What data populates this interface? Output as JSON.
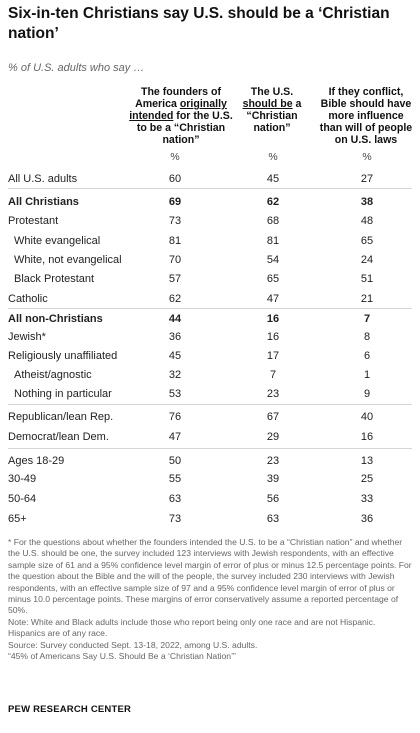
{
  "chart_data": {
    "type": "table",
    "title": "Six-in-ten Christians say U.S. should be a ‘Christian nation’",
    "subtitle": "% of U.S. adults who say …",
    "columns": [
      {
        "pre": "The founders of America ",
        "emph": "originally intended",
        "post": " for the U.S. to be a “Christian nation”"
      },
      {
        "pre": "The U.S. ",
        "emph": "should be",
        "post": " a “Christian nation”"
      },
      {
        "pre": "If they conflict, Bible should have more influence than will of people on U.S. laws",
        "emph": "",
        "post": ""
      }
    ],
    "unit": "%",
    "rows": [
      {
        "label": "All U.S. adults",
        "values": [
          "60",
          "45",
          "27"
        ],
        "bold": false,
        "indent": false
      },
      {
        "label": "All Christians",
        "values": [
          "69",
          "62",
          "38"
        ],
        "bold": true,
        "indent": false
      },
      {
        "label": "Protestant",
        "values": [
          "73",
          "68",
          "48"
        ],
        "bold": false,
        "indent": false
      },
      {
        "label": "White evangelical",
        "values": [
          "81",
          "81",
          "65"
        ],
        "bold": false,
        "indent": true
      },
      {
        "label": "White, not evangelical",
        "values": [
          "70",
          "54",
          "24"
        ],
        "bold": false,
        "indent": true
      },
      {
        "label": "Black Protestant",
        "values": [
          "57",
          "65",
          "51"
        ],
        "bold": false,
        "indent": true
      },
      {
        "label": "Catholic",
        "values": [
          "62",
          "47",
          "21"
        ],
        "bold": false,
        "indent": false
      },
      {
        "label": "All non-Christians",
        "values": [
          "44",
          "16",
          "7"
        ],
        "bold": true,
        "indent": false
      },
      {
        "label": "Jewish*",
        "values": [
          "36",
          "16",
          "8"
        ],
        "bold": false,
        "indent": false
      },
      {
        "label": "Religiously unaffiliated",
        "values": [
          "45",
          "17",
          "6"
        ],
        "bold": false,
        "indent": false
      },
      {
        "label": "Atheist/agnostic",
        "values": [
          "32",
          "7",
          "1"
        ],
        "bold": false,
        "indent": true
      },
      {
        "label": "Nothing in particular",
        "values": [
          "53",
          "23",
          "9"
        ],
        "bold": false,
        "indent": true
      },
      {
        "label": "Republican/lean Rep.",
        "values": [
          "76",
          "67",
          "40"
        ],
        "bold": false,
        "indent": false
      },
      {
        "label": "Democrat/lean Dem.",
        "values": [
          "47",
          "29",
          "16"
        ],
        "bold": false,
        "indent": false
      },
      {
        "label": "Ages 18-29",
        "values": [
          "50",
          "23",
          "13"
        ],
        "bold": false,
        "indent": false
      },
      {
        "label": "30-49",
        "values": [
          "55",
          "39",
          "25"
        ],
        "bold": false,
        "indent": false
      },
      {
        "label": "50-64",
        "values": [
          "63",
          "56",
          "33"
        ],
        "bold": false,
        "indent": false
      },
      {
        "label": "65+",
        "values": [
          "73",
          "63",
          "36"
        ],
        "bold": false,
        "indent": false
      }
    ]
  },
  "notes": {
    "footnote": "* For the questions about whether the founders intended the U.S. to be a “Christian nation” and whether the U.S. should be one, the survey included 123 interviews with Jewish respondents, with an effective sample size of 61 and a 95% confidence level margin of error of plus or minus 12.5 percentage points. For the question about the Bible and the will of the people, the survey included 230 interviews with Jewish respondents, with an effective sample size of 97 and a 95% confidence level margin of error of plus or minus 10.0 percentage points. These margins of error conservatively assume a reported percentage of 50%.",
    "note": "Note: White and Black adults include those who report being only one race and are not Hispanic. Hispanics are of any race.",
    "source": "Source: Survey conducted Sept. 13-18, 2022, among U.S. adults.",
    "report": "“45% of Americans Say U.S. Should Be a ‘Christian Nation’”"
  },
  "brand": "PEW RESEARCH CENTER",
  "colors": {
    "text": "#222222",
    "muted": "#666666",
    "separator": "#d6d6d6"
  }
}
